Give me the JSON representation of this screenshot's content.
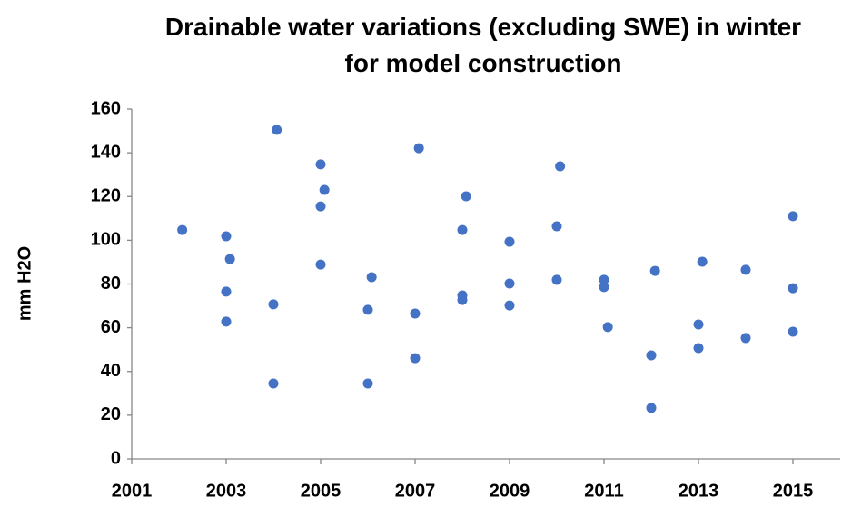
{
  "chart_data": {
    "type": "scatter",
    "title": "Drainable water variations (excluding SWE) in winter for model construction",
    "ylabel": "mm H2O",
    "color": "#4472c4",
    "x": [
      2002.07,
      2003,
      2003.08,
      2003,
      2003,
      2004.07,
      2004,
      2004,
      2005,
      2005.08,
      2005,
      2005,
      2006.08,
      2006,
      2006,
      2007.08,
      2007,
      2007,
      2008.08,
      2008,
      2008,
      2008,
      2009,
      2009,
      2009,
      2010.07,
      2010,
      2010,
      2011,
      2011,
      2011.08,
      2012.08,
      2012,
      2012,
      2013.08,
      2013,
      2013,
      2014,
      2014,
      2015,
      2015,
      2015
    ],
    "values": [
      104.7,
      101.8,
      91.4,
      76.5,
      62.8,
      150.5,
      70.7,
      34.5,
      134.7,
      123,
      115.5,
      88.9,
      83.1,
      68.2,
      34.5,
      142.1,
      66.5,
      46.1,
      120.1,
      104.7,
      74.8,
      72.7,
      99.3,
      80.2,
      70.2,
      133.8,
      106.4,
      81.9,
      81.9,
      78.6,
      60.3,
      86,
      47.4,
      23.3,
      90.2,
      61.5,
      50.7,
      86.5,
      55.3,
      111,
      78.1,
      58.2
    ],
    "xlim": [
      2001,
      2016
    ],
    "xticks": [
      2001,
      2003,
      2005,
      2007,
      2009,
      2011,
      2013,
      2015
    ],
    "ylim": [
      0,
      160
    ],
    "yticks": [
      0,
      20,
      40,
      60,
      80,
      100,
      120,
      140,
      160
    ],
    "grid": false
  }
}
